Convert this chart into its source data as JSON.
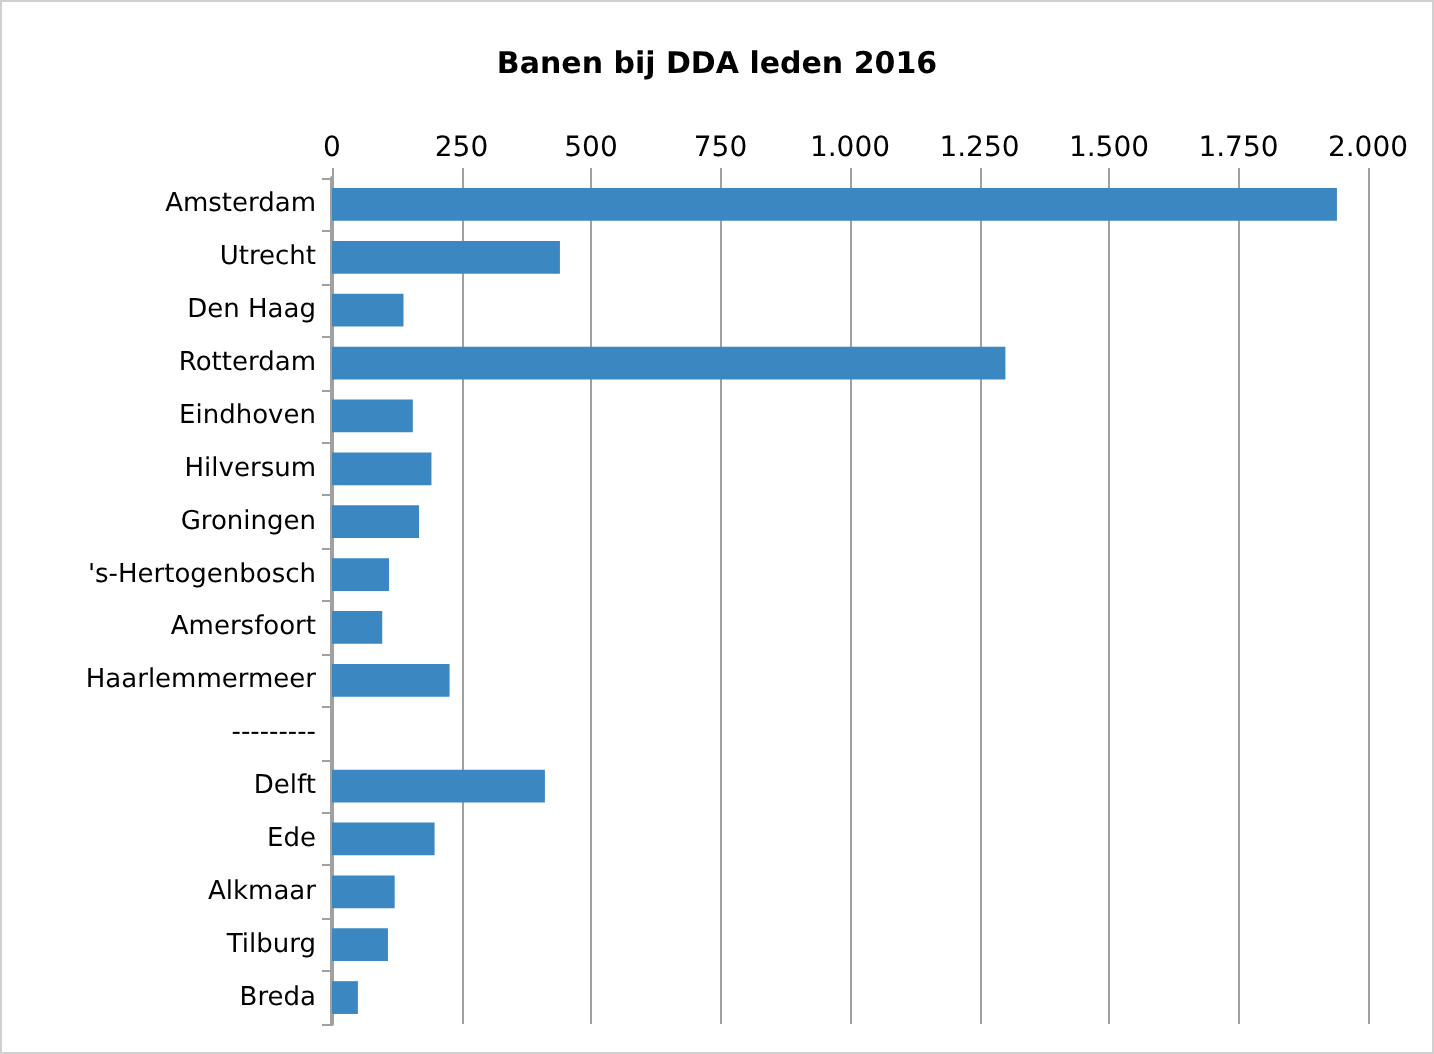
{
  "chart_data": {
    "type": "bar",
    "orientation": "horizontal",
    "title": "Banen bij DDA leden 2016",
    "categories": [
      "Amsterdam",
      "Utrecht",
      "Den Haag",
      "Rotterdam",
      "Eindhoven",
      "Hilversum",
      "Groningen",
      "'s-Hertogenbosch",
      "Amersfoort",
      "Haarlemmermeer",
      "---------",
      "Delft",
      "Ede",
      "Alkmaar",
      "Tilburg",
      "Breda"
    ],
    "values": [
      1940,
      440,
      138,
      1300,
      156,
      192,
      168,
      110,
      97,
      227,
      null,
      411,
      198,
      121,
      108,
      50
    ],
    "color": "#3a87c2",
    "xlim": [
      0,
      2000
    ],
    "xticks": [
      0,
      250,
      500,
      750,
      {
        "value": 1000,
        "label": "1.000"
      },
      {
        "value": 1250,
        "label": "1.250"
      },
      {
        "value": 1500,
        "label": "1.500"
      },
      {
        "value": 1750,
        "label": "1.750"
      },
      {
        "value": 2000,
        "label": "2.000"
      }
    ],
    "grid": "x"
  }
}
